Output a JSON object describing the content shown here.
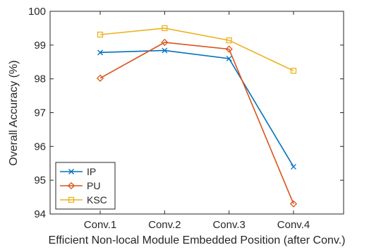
{
  "chart_data": {
    "type": "line",
    "title": "",
    "xlabel": "Efficient Non-local Module Embedded Position (after Conv.)",
    "ylabel": "Overall Accuracy (%)",
    "categories": [
      "Conv.1",
      "Conv.2",
      "Conv.3",
      "Conv.4"
    ],
    "ylim": [
      94,
      100
    ],
    "yticks": [
      94,
      95,
      96,
      97,
      98,
      99,
      100
    ],
    "grid": false,
    "legend_position": "bottom-left",
    "series": [
      {
        "name": "IP",
        "values": [
          98.78,
          98.84,
          98.6,
          95.4
        ],
        "color": "#0072BD",
        "marker": "x"
      },
      {
        "name": "PU",
        "values": [
          98.02,
          99.08,
          98.88,
          94.3
        ],
        "color": "#D95319",
        "marker": "diamond"
      },
      {
        "name": "KSC",
        "values": [
          99.31,
          99.5,
          99.14,
          98.24
        ],
        "color": "#EDB120",
        "marker": "square"
      }
    ]
  }
}
